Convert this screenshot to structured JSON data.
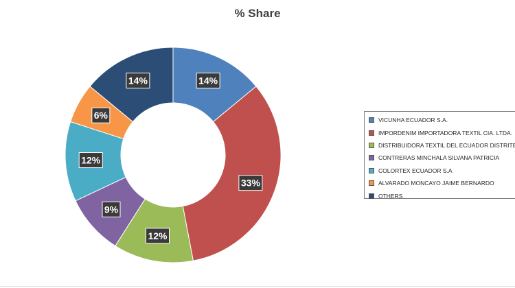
{
  "chart_data": {
    "type": "pie",
    "donut": true,
    "title": "% Share",
    "legend_position": "right",
    "slices": [
      {
        "name": "VICUNHA ECUADOR S.A.",
        "value": 14,
        "label": "14%",
        "color": "#4f81bd"
      },
      {
        "name": "IMPORDENIM IMPORTADORA TEXTIL CIA. LTDA.",
        "value": 33,
        "label": "33%",
        "color": "#c0504d"
      },
      {
        "name": "DISTRIBUIDORA TEXTIL DEL ECUADOR DISTRITEX S",
        "value": 12,
        "label": "12%",
        "color": "#9bbb59"
      },
      {
        "name": "CONTRERAS MINCHALA SILVANA PATRICIA",
        "value": 9,
        "label": "9%",
        "color": "#8064a2"
      },
      {
        "name": "COLORTEX ECUADOR S.A",
        "value": 12,
        "label": "12%",
        "color": "#4bacc6"
      },
      {
        "name": "ALVARADO MONCAYO JAIME BERNARDO",
        "value": 6,
        "label": "6%",
        "color": "#f79646"
      },
      {
        "name": "OTHERS",
        "value": 14,
        "label": "14%",
        "color": "#2c4d75"
      }
    ]
  }
}
